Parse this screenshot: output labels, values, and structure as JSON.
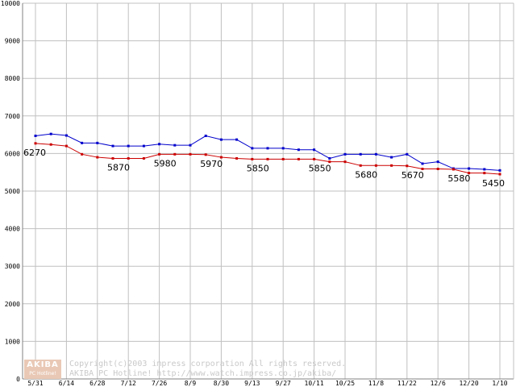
{
  "chart_data": {
    "type": "line",
    "categories": [
      "5/31",
      "",
      "6/14",
      "",
      "6/28",
      "",
      "7/12",
      "",
      "7/26",
      "",
      "8/9",
      "",
      "8/30",
      "",
      "9/13",
      "",
      "9/27",
      "",
      "10/11",
      "",
      "10/25",
      "",
      "11/8",
      "",
      "11/22",
      "",
      "12/6",
      "",
      "12/20",
      "",
      "1/10"
    ],
    "series": [
      {
        "color": "#0000cc",
        "values": [
          6470,
          6520,
          6480,
          6280,
          6280,
          6200,
          6200,
          6200,
          6250,
          6220,
          6220,
          6470,
          6370,
          6370,
          6140,
          6140,
          6140,
          6100,
          6100,
          5870,
          5980,
          5980,
          5980,
          5900,
          5980,
          5730,
          5780,
          5600,
          5600,
          5580,
          5550
        ]
      },
      {
        "color": "#cc0000",
        "values": [
          6270,
          6240,
          6200,
          5980,
          5900,
          5870,
          5870,
          5870,
          5980,
          5980,
          5980,
          5970,
          5900,
          5870,
          5850,
          5850,
          5850,
          5850,
          5850,
          5780,
          5780,
          5680,
          5680,
          5680,
          5670,
          5590,
          5590,
          5580,
          5480,
          5480,
          5450
        ]
      }
    ],
    "data_labels": [
      {
        "index": 0,
        "text": "6270"
      },
      {
        "index": 5,
        "text": "5870"
      },
      {
        "index": 8,
        "text": "5980"
      },
      {
        "index": 11,
        "text": "5970"
      },
      {
        "index": 14,
        "text": "5850"
      },
      {
        "index": 18,
        "text": "5850"
      },
      {
        "index": 21,
        "text": "5680"
      },
      {
        "index": 24,
        "text": "5670"
      },
      {
        "index": 27,
        "text": "5580"
      },
      {
        "index": 30,
        "text": "5450"
      }
    ],
    "y_ticks": [
      "0",
      "1000",
      "2000",
      "3000",
      "4000",
      "5000",
      "6000",
      "7000",
      "8000",
      "9000",
      "10000"
    ],
    "ylim": [
      0,
      10000
    ],
    "grid": true,
    "gridColor": "#c0c0c0"
  },
  "watermark": {
    "logo_line1": "AKIBA",
    "logo_line2": "PC Hotline!",
    "line1": "Copyright(c)2003 impress corporation All rights reserved.",
    "line2": "AKIBA PC Hotline!  http://www.watch.impress.co.jp/akiba/"
  }
}
